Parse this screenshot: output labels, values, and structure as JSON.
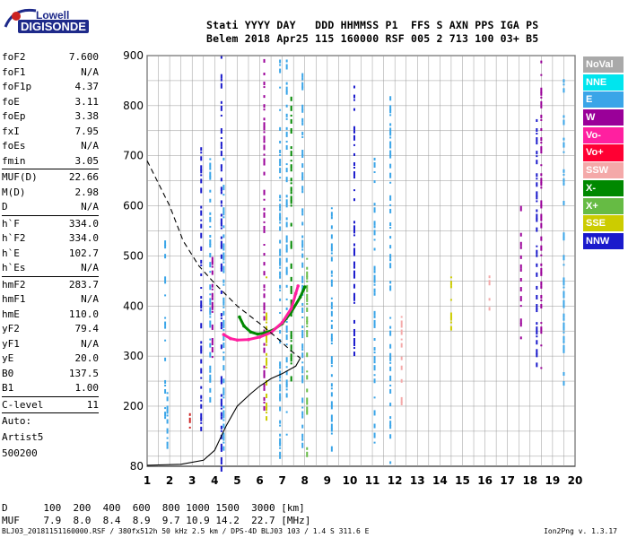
{
  "logo": {
    "line1": "Lowell",
    "line2": "DIGISONDE"
  },
  "header": {
    "line1": "Stati YYYY DAY   DDD HHMMSS P1  FFS S AXN PPS IGA PS",
    "line2": "Belem 2018 Apr25 115 160000 RSF 005 2 713 100 03+ B5"
  },
  "params": [
    {
      "name": "foF2",
      "value": "7.600"
    },
    {
      "name": "foF1",
      "value": "N/A"
    },
    {
      "name": "foF1p",
      "value": "4.37"
    },
    {
      "name": "foE",
      "value": "3.11"
    },
    {
      "name": "foEp",
      "value": "3.38"
    },
    {
      "name": "fxI",
      "value": "7.95"
    },
    {
      "name": "foEs",
      "value": "N/A"
    },
    {
      "name": "fmin",
      "value": "3.05"
    },
    {
      "sep": true
    },
    {
      "name": "MUF(D)",
      "value": "22.66"
    },
    {
      "name": "M(D)",
      "value": "2.98"
    },
    {
      "name": "D",
      "value": "N/A"
    },
    {
      "sep": true
    },
    {
      "name": "h`F",
      "value": "334.0"
    },
    {
      "name": "h`F2",
      "value": "334.0"
    },
    {
      "name": "h`E",
      "value": "102.7"
    },
    {
      "name": "h`Es",
      "value": "N/A"
    },
    {
      "sep": true
    },
    {
      "name": "hmF2",
      "value": "283.7"
    },
    {
      "name": "hmF1",
      "value": "N/A"
    },
    {
      "name": "hmE",
      "value": "110.0"
    },
    {
      "name": "yF2",
      "value": "79.4"
    },
    {
      "name": "yF1",
      "value": "N/A"
    },
    {
      "name": "yE",
      "value": "20.0"
    },
    {
      "name": "B0",
      "value": "137.5"
    },
    {
      "name": "B1",
      "value": "1.00"
    },
    {
      "sep": true
    },
    {
      "name": "C-level",
      "value": "11"
    },
    {
      "sep": true
    },
    {
      "label": "Auto:"
    },
    {
      "label": "Artist5"
    },
    {
      "label": "500200"
    }
  ],
  "legend": [
    {
      "label": "NoVal",
      "color": "#a9a9a9"
    },
    {
      "label": "NNE",
      "color": "#00e5ee"
    },
    {
      "label": "E",
      "color": "#3aa5e8"
    },
    {
      "label": "W",
      "color": "#9a0099"
    },
    {
      "label": "Vo-",
      "color": "#ff20a0"
    },
    {
      "label": "Vo+",
      "color": "#ff0033"
    },
    {
      "label": "SSW",
      "color": "#f4a9a9"
    },
    {
      "label": "X-",
      "color": "#008800"
    },
    {
      "label": "X+",
      "color": "#66bb44"
    },
    {
      "label": "SSE",
      "color": "#cccc00"
    },
    {
      "label": "NNW",
      "color": "#1a1acc"
    }
  ],
  "chart_data": {
    "type": "scatter",
    "xlim": [
      1,
      20
    ],
    "ylim": [
      80,
      900
    ],
    "x_ticks": [
      1,
      2,
      3,
      4,
      5,
      6,
      7,
      8,
      9,
      10,
      11,
      12,
      13,
      14,
      15,
      16,
      17,
      18,
      19,
      20
    ],
    "y_ticks": [
      80,
      200,
      300,
      400,
      500,
      600,
      700,
      800,
      900
    ],
    "grid": true,
    "series": [
      {
        "name": "X-",
        "color": "#008800",
        "values": [
          [
            5.1,
            378
          ],
          [
            5.3,
            360
          ],
          [
            5.6,
            348
          ],
          [
            5.9,
            344
          ],
          [
            6.2,
            346
          ],
          [
            6.6,
            352
          ],
          [
            7.0,
            365
          ],
          [
            7.4,
            388
          ],
          [
            7.8,
            418
          ],
          [
            8.0,
            438
          ]
        ]
      },
      {
        "name": "Vo-",
        "color": "#ff20a0",
        "values": [
          [
            4.4,
            343
          ],
          [
            4.7,
            335
          ],
          [
            5.0,
            332
          ],
          [
            5.5,
            333
          ],
          [
            6.0,
            338
          ],
          [
            6.5,
            347
          ],
          [
            7.0,
            367
          ],
          [
            7.4,
            395
          ],
          [
            7.6,
            425
          ],
          [
            7.7,
            440
          ]
        ]
      }
    ],
    "lines": [
      {
        "style": "solid",
        "color": "#000000",
        "values": [
          [
            1.0,
            82
          ],
          [
            2.5,
            84
          ],
          [
            3.5,
            92
          ],
          [
            4.0,
            112
          ],
          [
            4.5,
            160
          ],
          [
            5.0,
            200
          ],
          [
            5.6,
            225
          ],
          [
            6.0,
            240
          ],
          [
            6.5,
            255
          ],
          [
            7.0,
            265
          ],
          [
            7.6,
            280
          ],
          [
            7.8,
            296
          ]
        ]
      },
      {
        "style": "dashed",
        "color": "#000000",
        "values": [
          [
            1.0,
            690
          ],
          [
            2.0,
            600
          ],
          [
            2.6,
            530
          ],
          [
            3.3,
            480
          ],
          [
            4.0,
            445
          ],
          [
            5.0,
            400
          ],
          [
            6.0,
            365
          ],
          [
            6.8,
            335
          ],
          [
            7.4,
            310
          ],
          [
            7.8,
            296
          ]
        ]
      }
    ]
  },
  "bottom": {
    "line1": "D      100  200  400  600  800 1000 1500  3000 [km]",
    "line2": "MUF    7.9  8.0  8.4  8.9  9.7 10.9 14.2  22.7 [MHz]"
  },
  "footer": {
    "left": "BLJ03_20181151160000.RSF / 380fx512h 50 kHz 2.5 km / DPS-4D BLJ03 103 / 1.4 S 311.6 E",
    "right": "Ion2Png v. 1.3.17"
  }
}
